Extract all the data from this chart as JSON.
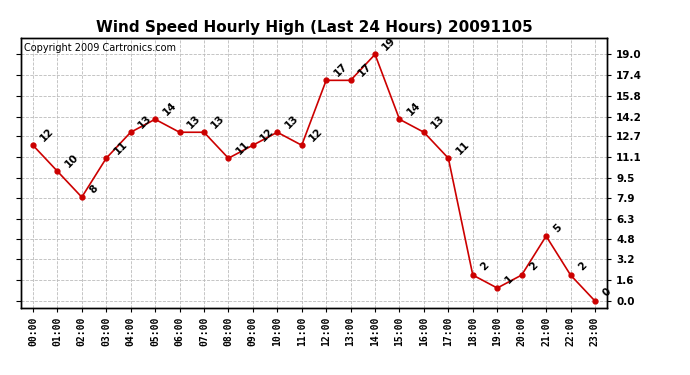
{
  "title": "Wind Speed Hourly High (Last 24 Hours) 20091105",
  "copyright": "Copyright 2009 Cartronics.com",
  "hours": [
    "00:00",
    "01:00",
    "02:00",
    "03:00",
    "04:00",
    "05:00",
    "06:00",
    "07:00",
    "08:00",
    "09:00",
    "10:00",
    "11:00",
    "12:00",
    "13:00",
    "14:00",
    "15:00",
    "16:00",
    "17:00",
    "18:00",
    "19:00",
    "20:00",
    "21:00",
    "22:00",
    "23:00"
  ],
  "values": [
    12,
    10,
    8,
    11,
    13,
    14,
    13,
    13,
    11,
    12,
    13,
    12,
    17,
    17,
    19,
    14,
    13,
    11,
    2,
    1,
    2,
    5,
    2,
    0
  ],
  "line_color": "#cc0000",
  "marker_color": "#cc0000",
  "bg_color": "#ffffff",
  "grid_color": "#bbbbbb",
  "yticks": [
    0.0,
    1.6,
    3.2,
    4.8,
    6.3,
    7.9,
    9.5,
    11.1,
    12.7,
    14.2,
    15.8,
    17.4,
    19.0
  ],
  "ylim": [
    -0.5,
    20.3
  ],
  "title_fontsize": 11,
  "label_fontsize": 7.5,
  "copyright_fontsize": 7
}
